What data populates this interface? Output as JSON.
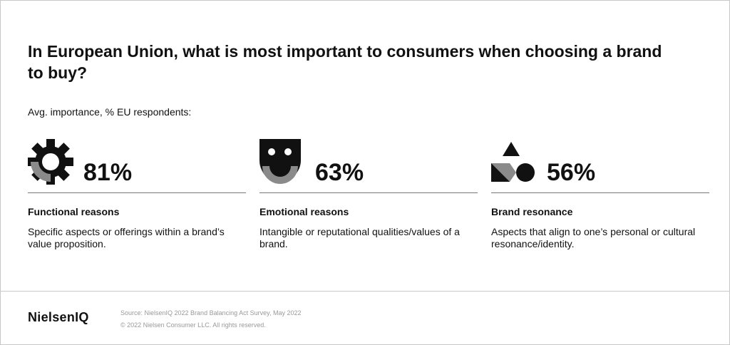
{
  "header": {
    "title": "In European Union, what is most important to consumers when choosing a brand to buy?",
    "subtitle": "Avg. importance, % EU respondents:"
  },
  "cards": [
    {
      "value": "81%",
      "title": "Functional reasons",
      "description": "Specific aspects or offerings within a brand’s value proposition."
    },
    {
      "value": "63%",
      "title": "Emotional reasons",
      "description": "Intangible or reputational qualities/values of a brand."
    },
    {
      "value": "56%",
      "title": "Brand resonance",
      "description": "Aspects that align to one’s personal or cultural resonance/identity."
    }
  ],
  "footer": {
    "logo": "NielsenIQ",
    "source": "Source: NielsenIQ 2022 Brand Balancing Act Survey, May 2022",
    "copyright": "© 2022 Nielsen Consumer LLC. All rights reserved."
  }
}
